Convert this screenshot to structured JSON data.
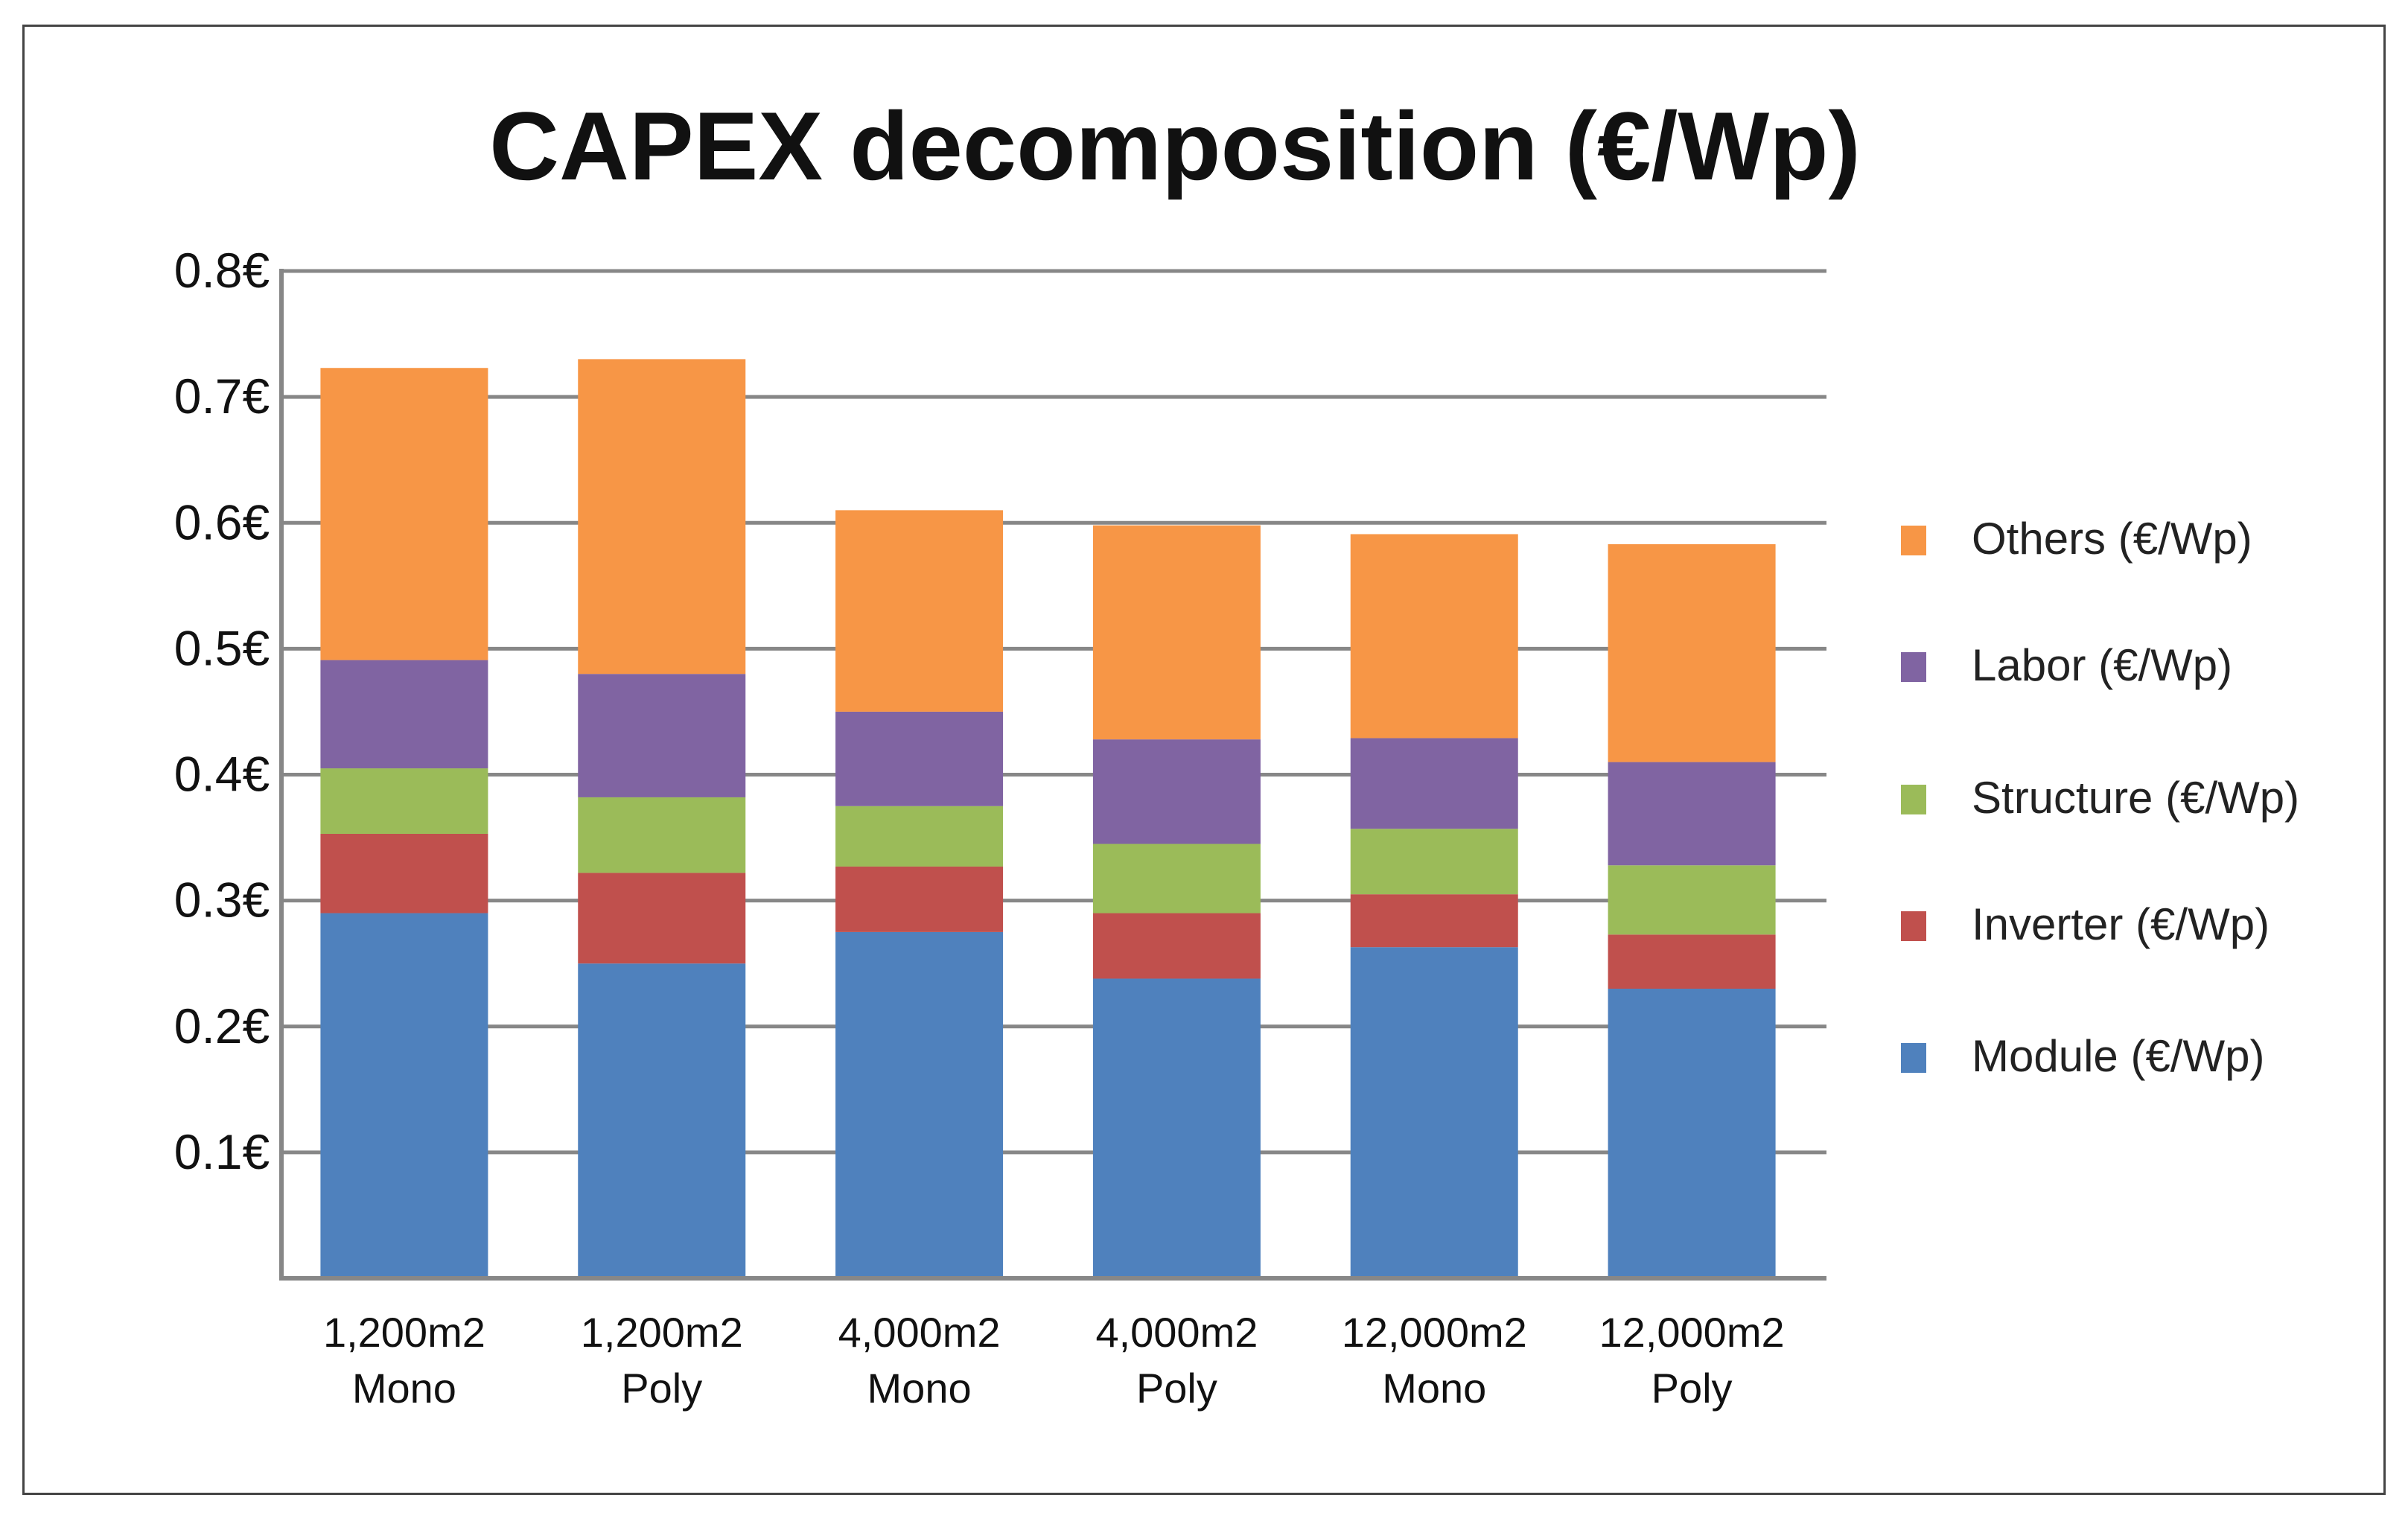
{
  "chart_data": {
    "type": "bar",
    "stacked": true,
    "title": "CAPEX decomposition (€/Wp)",
    "xlabel": "",
    "ylabel": "",
    "ylim": [
      0,
      0.8
    ],
    "yticks": [
      "0.1€",
      "0.2€",
      "0.3€",
      "0.4€",
      "0.5€",
      "0.6€",
      "0.7€",
      "0.8€"
    ],
    "ytick_values": [
      0.1,
      0.2,
      0.3,
      0.4,
      0.5,
      0.6,
      0.7,
      0.8
    ],
    "grid": true,
    "legend_position": "right",
    "categories": [
      [
        "1,200m2",
        "Mono"
      ],
      [
        "1,200m2",
        "Poly"
      ],
      [
        "4,000m2",
        "Mono"
      ],
      [
        "4,000m2",
        "Poly"
      ],
      [
        "12,000m2",
        "Mono"
      ],
      [
        "12,000m2",
        "Poly"
      ]
    ],
    "series": [
      {
        "name": "Module (€/Wp)",
        "color": "#4f81bd",
        "values": [
          0.29,
          0.25,
          0.275,
          0.238,
          0.263,
          0.23
        ]
      },
      {
        "name": "Inverter (€/Wp)",
        "color": "#c0504d",
        "values": [
          0.063,
          0.072,
          0.052,
          0.052,
          0.042,
          0.043
        ]
      },
      {
        "name": "Structure (€/Wp)",
        "color": "#9bbb59",
        "values": [
          0.052,
          0.06,
          0.048,
          0.055,
          0.052,
          0.055
        ]
      },
      {
        "name": "Labor (€/Wp)",
        "color": "#8064a2",
        "values": [
          0.086,
          0.098,
          0.075,
          0.083,
          0.072,
          0.082
        ]
      },
      {
        "name": "Others (€/Wp)",
        "color": "#f79646",
        "values": [
          0.232,
          0.25,
          0.16,
          0.17,
          0.162,
          0.173
        ]
      }
    ],
    "legend_order": [
      "Others (€/Wp)",
      "Labor (€/Wp)",
      "Structure (€/Wp)",
      "Inverter (€/Wp)",
      "Module (€/Wp)"
    ]
  }
}
